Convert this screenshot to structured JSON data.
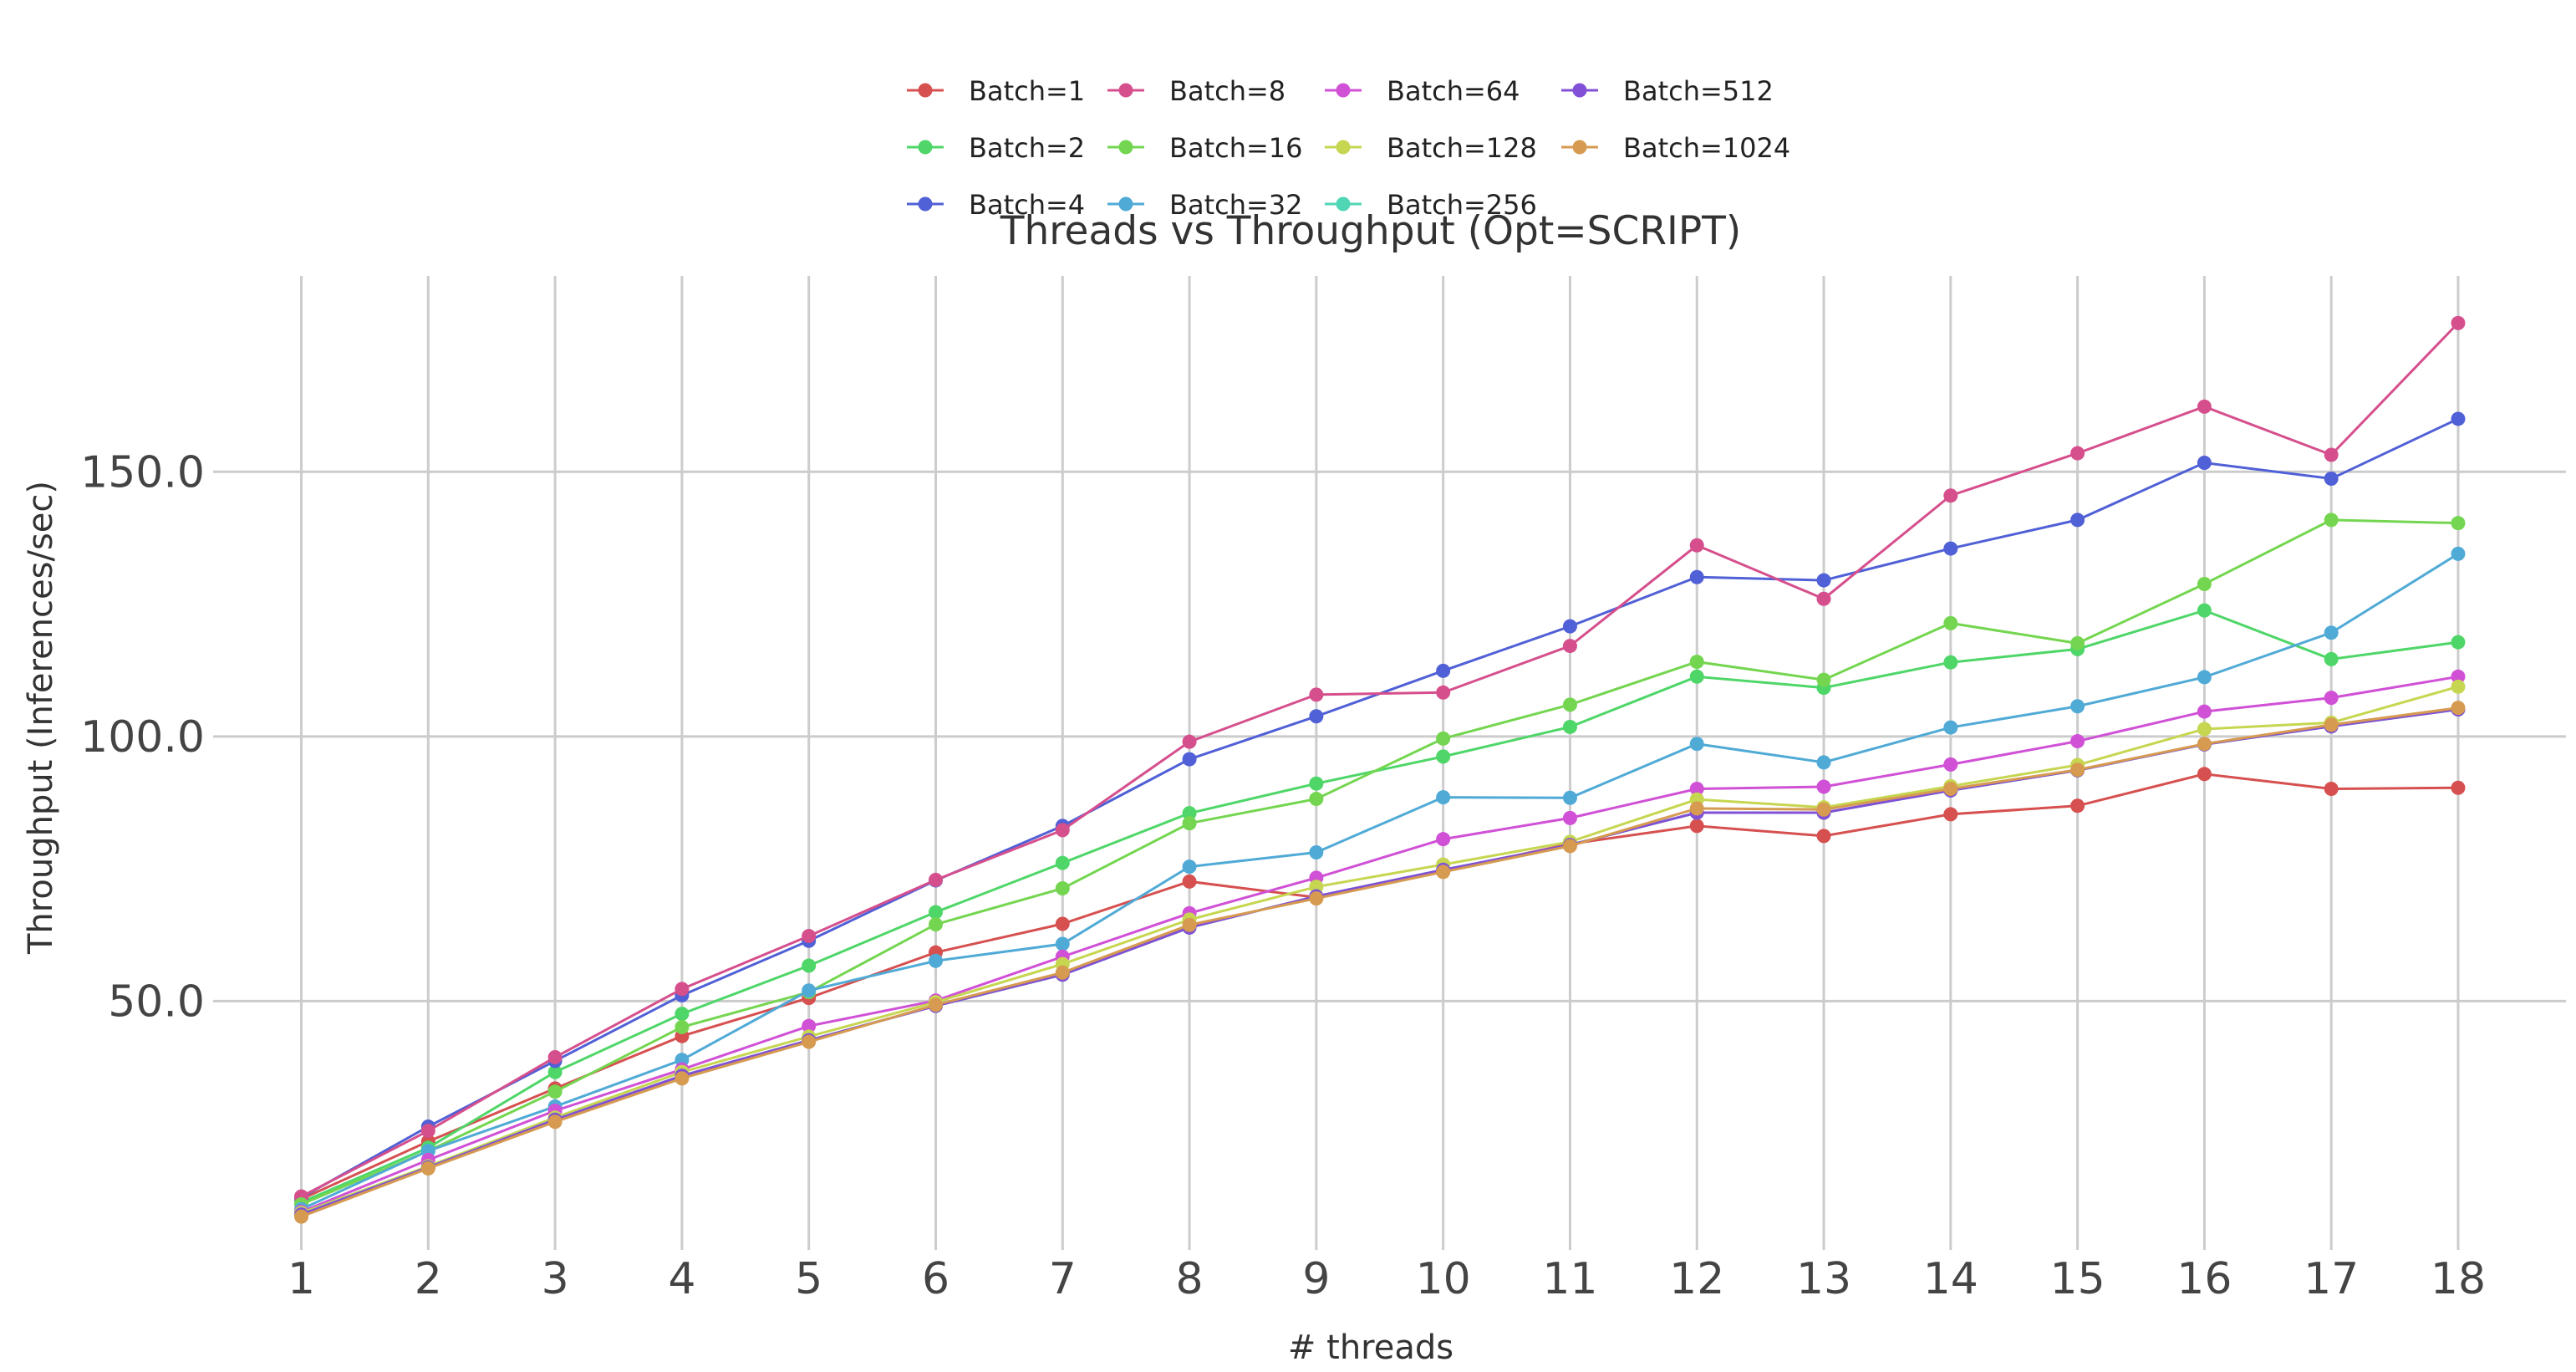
{
  "chart_data": {
    "type": "line",
    "title": "Threads vs Throughput (Opt=SCRIPT)",
    "xlabel": "# threads",
    "ylabel": "Throughput (Inferences/sec)",
    "x": [
      1,
      2,
      3,
      4,
      5,
      6,
      7,
      8,
      9,
      10,
      11,
      12,
      13,
      14,
      15,
      16,
      17,
      18
    ],
    "x_tick_labels": [
      "1",
      "2",
      "3",
      "4",
      "5",
      "6",
      "7",
      "8",
      "9",
      "10",
      "11",
      "12",
      "13",
      "14",
      "15",
      "16",
      "17",
      "18"
    ],
    "y_ticks": [
      50,
      100,
      150
    ],
    "y_tick_labels": [
      "50.0",
      "100.0",
      "150.0"
    ],
    "ylim": [
      3,
      187
    ],
    "xlim": [
      0.7,
      18.85
    ],
    "grid": true,
    "legend_position": "top-center",
    "series": [
      {
        "name": "Batch=1",
        "color": "#d65050",
        "values": [
          12.6,
          23.5,
          33.5,
          43.4,
          50.6,
          59.2,
          64.6,
          72.6,
          69.6,
          74.6,
          79.7,
          83.1,
          81.2,
          85.3,
          86.9,
          92.9,
          90.1,
          90.3
        ]
      },
      {
        "name": "Batch=2",
        "color": "#4fd668",
        "values": [
          12.0,
          22.3,
          36.6,
          47.6,
          56.7,
          66.8,
          76.1,
          85.5,
          91.1,
          96.2,
          101.8,
          111.3,
          109.2,
          114.0,
          116.5,
          123.8,
          114.6,
          117.8
        ]
      },
      {
        "name": "Batch=4",
        "color": "#5060d6",
        "values": [
          12.9,
          26.3,
          38.7,
          51.1,
          61.4,
          72.8,
          83.1,
          95.7,
          103.8,
          112.4,
          120.8,
          130.1,
          129.5,
          135.5,
          140.9,
          151.7,
          148.7,
          160.0
        ]
      },
      {
        "name": "Batch=8",
        "color": "#d64f8d",
        "values": [
          13.1,
          25.5,
          39.4,
          52.3,
          62.3,
          72.9,
          82.3,
          99.0,
          107.9,
          108.3,
          117.1,
          136.1,
          126.0,
          145.5,
          153.5,
          162.3,
          153.2,
          178.1
        ]
      },
      {
        "name": "Batch=16",
        "color": "#74d650",
        "values": [
          11.6,
          21.7,
          32.9,
          45.1,
          51.7,
          64.5,
          71.3,
          83.6,
          88.2,
          99.6,
          106.0,
          114.1,
          110.7,
          121.4,
          117.6,
          128.8,
          140.9,
          140.3
        ]
      },
      {
        "name": "Batch=32",
        "color": "#50aad6",
        "values": [
          10.7,
          21.7,
          30.1,
          38.9,
          52.0,
          57.6,
          60.8,
          75.4,
          78.1,
          88.5,
          88.4,
          98.6,
          95.1,
          101.7,
          105.7,
          111.2,
          119.6,
          134.5
        ]
      },
      {
        "name": "Batch=64",
        "color": "#d050d6",
        "values": [
          10.2,
          20.0,
          29.3,
          37.1,
          45.3,
          50.1,
          58.4,
          66.6,
          73.3,
          80.6,
          84.6,
          90.1,
          90.5,
          94.7,
          99.1,
          104.7,
          107.3,
          111.3
        ]
      },
      {
        "name": "Batch=128",
        "color": "#c6d650",
        "values": [
          10.0,
          18.8,
          28.0,
          36.6,
          43.3,
          49.8,
          57.0,
          65.4,
          71.6,
          75.8,
          80.1,
          88.1,
          86.6,
          90.6,
          94.6,
          101.4,
          102.6,
          109.4
        ]
      },
      {
        "name": "Batch=256",
        "color": "#50d6b4",
        "values": [
          9.7,
          18.6,
          27.6,
          35.9,
          42.6,
          49.1,
          55.0,
          63.9,
          69.8,
          74.8,
          79.5,
          85.6,
          85.6,
          89.8,
          93.6,
          98.5,
          101.9,
          105.1
        ]
      },
      {
        "name": "Batch=512",
        "color": "#8150d6",
        "values": [
          9.7,
          18.6,
          27.6,
          35.9,
          42.6,
          49.1,
          55.0,
          63.9,
          69.8,
          74.8,
          79.5,
          85.6,
          85.6,
          89.8,
          93.6,
          98.5,
          101.9,
          105.1
        ]
      },
      {
        "name": "Batch=1024",
        "color": "#d69a50",
        "values": [
          9.3,
          18.4,
          27.2,
          35.4,
          42.3,
          49.3,
          55.4,
          64.4,
          69.4,
          74.4,
          79.3,
          86.4,
          86.2,
          90.1,
          93.7,
          98.6,
          102.2,
          105.4
        ]
      }
    ],
    "legend_columns": [
      [
        "Batch=1",
        "Batch=2",
        "Batch=4"
      ],
      [
        "Batch=8",
        "Batch=16",
        "Batch=32"
      ],
      [
        "Batch=64",
        "Batch=128",
        "Batch=256"
      ],
      [
        "Batch=512",
        "Batch=1024"
      ]
    ]
  }
}
